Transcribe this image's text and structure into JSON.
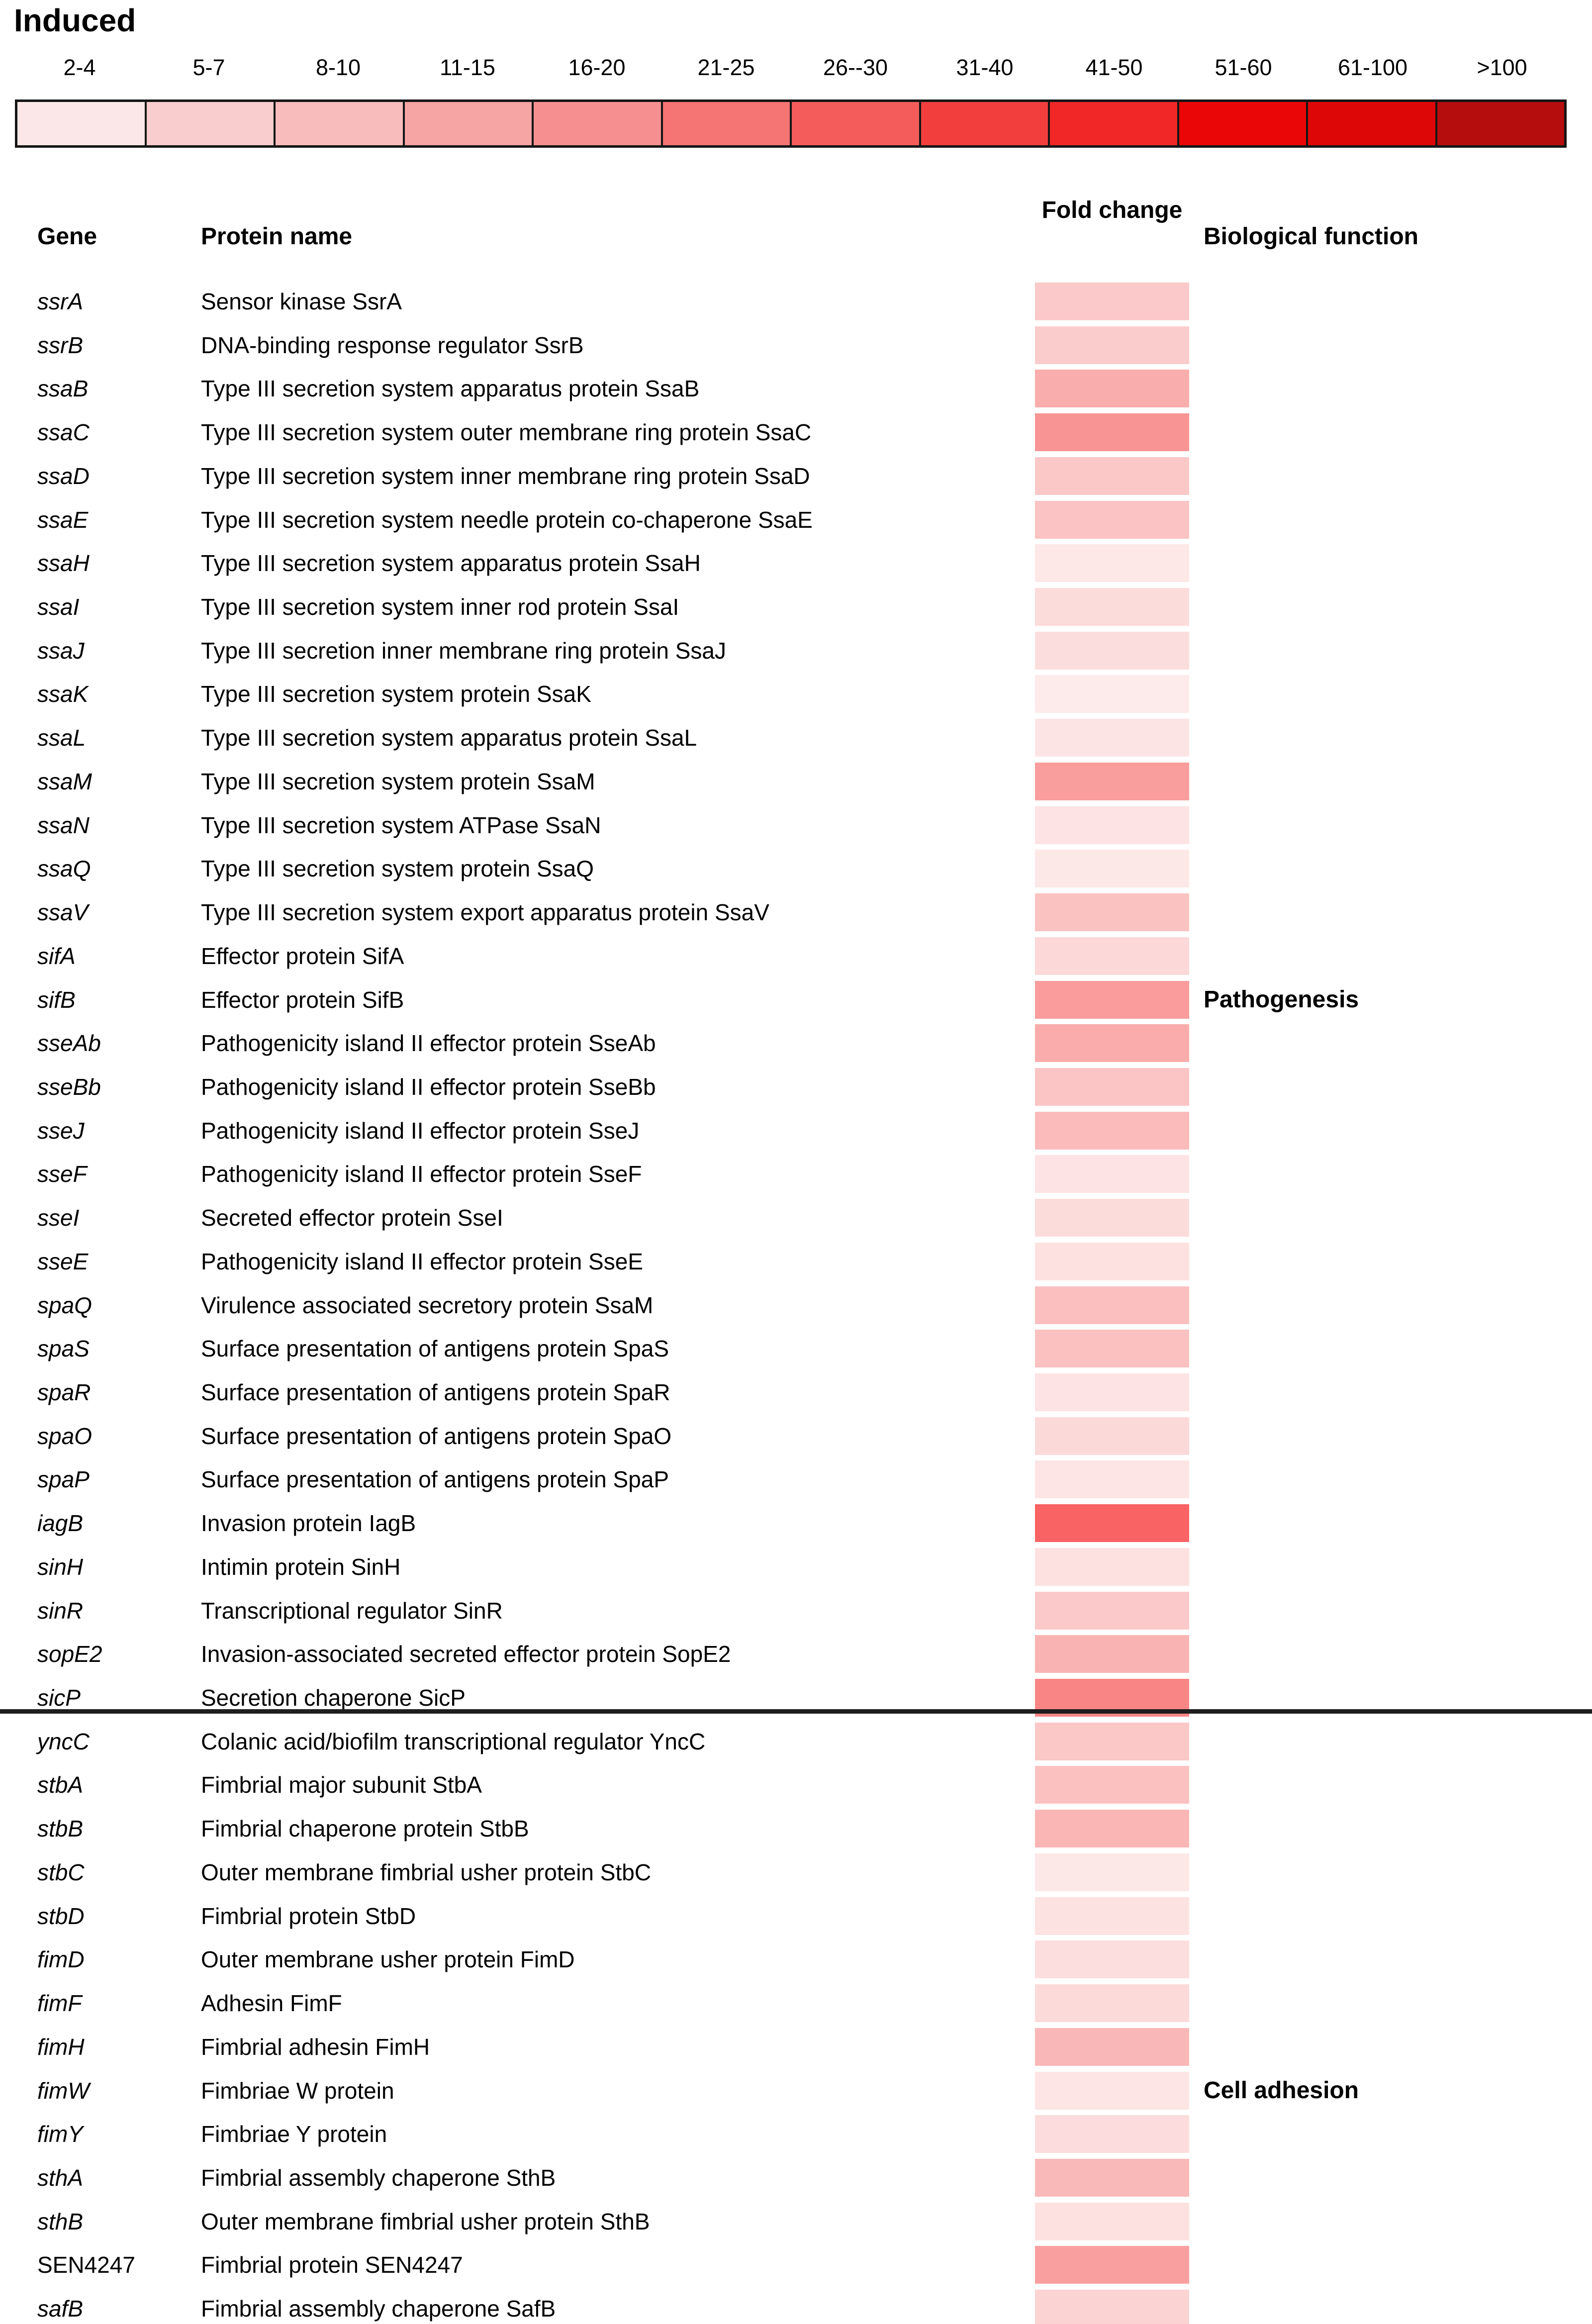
{
  "title": "Induced",
  "chart_data": {
    "type": "heatmap",
    "title": "Induced",
    "legend": {
      "bins": [
        {
          "label": "2-4",
          "color": "#fbe7e7"
        },
        {
          "label": "5-7",
          "color": "#f9cdcd"
        },
        {
          "label": "8-10",
          "color": "#f8bcbc"
        },
        {
          "label": "11-15",
          "color": "#f7a4a4"
        },
        {
          "label": "16-20",
          "color": "#f69090"
        },
        {
          "label": "21-25",
          "color": "#f57474"
        },
        {
          "label": "26--30",
          "color": "#f45c5c"
        },
        {
          "label": "31-40",
          "color": "#f33e3e"
        },
        {
          "label": "41-50",
          "color": "#f12727"
        },
        {
          "label": "51-60",
          "color": "#ea0606"
        },
        {
          "label": "61-100",
          "color": "#de0707"
        },
        {
          "label": ">100",
          "color": "#b50d0d"
        }
      ]
    },
    "table": {
      "headers": {
        "gene": "Gene",
        "protein": "Protein name",
        "fold_change": "Fold change",
        "biological_function": "Biological function"
      },
      "groups": [
        {
          "function": "Pathogenesis",
          "function_row": 16,
          "rows": [
            {
              "gene": "ssrA",
              "protein": "Sensor kinase SsrA",
              "fold_color": "#fbc9c9",
              "fold_bin": "8-10"
            },
            {
              "gene": "ssrB",
              "protein": "DNA-binding response regulator SsrB",
              "fold_color": "#fbcccc",
              "fold_bin": "8-10"
            },
            {
              "gene": "ssaB",
              "protein": "Type III secretion system apparatus protein SsaB",
              "fold_color": "#faadad",
              "fold_bin": "11-15"
            },
            {
              "gene": "ssaC",
              "protein": "Type III secretion system outer membrane ring protein SsaC",
              "fold_color": "#f99494",
              "fold_bin": "16-20"
            },
            {
              "gene": "ssaD",
              "protein": "Type III secretion system inner membrane ring protein SsaD",
              "fold_color": "#fbc7c7",
              "fold_bin": "8-10"
            },
            {
              "gene": "ssaE",
              "protein": "Type III secretion system needle protein co-chaperone SsaE",
              "fold_color": "#fbc3c3",
              "fold_bin": "8-10"
            },
            {
              "gene": "ssaH",
              "protein": "Type III secretion system apparatus protein SsaH",
              "fold_color": "#fde7e7",
              "fold_bin": "2-4"
            },
            {
              "gene": "ssaI",
              "protein": "Type III secretion system inner rod protein SsaI",
              "fold_color": "#fcdbdb",
              "fold_bin": "5-7"
            },
            {
              "gene": "ssaJ",
              "protein": "Type III secretion inner membrane ring protein SsaJ",
              "fold_color": "#fcdddd",
              "fold_bin": "5-7"
            },
            {
              "gene": "ssaK",
              "protein": "Type III secretion system protein SsaK",
              "fold_color": "#fdeaea",
              "fold_bin": "2-4"
            },
            {
              "gene": "ssaL",
              "protein": "Type III secretion system apparatus protein SsaL",
              "fold_color": "#fde4e4",
              "fold_bin": "2-4"
            },
            {
              "gene": "ssaM",
              "protein": "Type III secretion system protein SsaM",
              "fold_color": "#fa9d9d",
              "fold_bin": "16-20"
            },
            {
              "gene": "ssaN",
              "protein": "Type III secretion system ATPase SsaN",
              "fold_color": "#fde3e3",
              "fold_bin": "2-4"
            },
            {
              "gene": "ssaQ",
              "protein": "Type III secretion system protein SsaQ",
              "fold_color": "#fde8e8",
              "fold_bin": "2-4"
            },
            {
              "gene": "ssaV",
              "protein": "Type III secretion system export apparatus protein SsaV",
              "fold_color": "#fbc2c2",
              "fold_bin": "8-10"
            },
            {
              "gene": "sifA",
              "protein": "Effector protein SifA",
              "fold_color": "#fcd8d8",
              "fold_bin": "5-7"
            },
            {
              "gene": "sifB",
              "protein": "Effector protein SifB",
              "fold_color": "#fa9c9c",
              "fold_bin": "16-20"
            },
            {
              "gene": "sseAb",
              "protein": "Pathogenicity island II effector protein SseAb",
              "fold_color": "#faacac",
              "fold_bin": "11-15"
            },
            {
              "gene": "sseBb",
              "protein": "Pathogenicity island II effector protein SseBb",
              "fold_color": "#fbc5c5",
              "fold_bin": "8-10"
            },
            {
              "gene": "sseJ",
              "protein": "Pathogenicity island II effector protein SseJ",
              "fold_color": "#fbbbbb",
              "fold_bin": "11-15"
            },
            {
              "gene": "sseF",
              "protein": "Pathogenicity island II effector protein SseF",
              "fold_color": "#fde3e3",
              "fold_bin": "2-4"
            },
            {
              "gene": "sseI",
              "protein": "Secreted effector protein SseI",
              "fold_color": "#fcdbdb",
              "fold_bin": "5-7"
            },
            {
              "gene": "sseE",
              "protein": "Pathogenicity island II effector protein SseE",
              "fold_color": "#fde1e1",
              "fold_bin": "2-4"
            },
            {
              "gene": "spaQ",
              "protein": "Virulence associated secretory protein SsaM",
              "fold_color": "#fbbfbf",
              "fold_bin": "11-15"
            },
            {
              "gene": "spaS",
              "protein": "Surface presentation of antigens protein SpaS",
              "fold_color": "#fbc1c1",
              "fold_bin": "8-10"
            },
            {
              "gene": "spaR",
              "protein": "Surface presentation of antigens protein SpaR",
              "fold_color": "#fde3e3",
              "fold_bin": "2-4"
            },
            {
              "gene": "spaO",
              "protein": "Surface presentation of antigens protein SpaO",
              "fold_color": "#fcd9d9",
              "fold_bin": "5-7"
            },
            {
              "gene": "spaP",
              "protein": "Surface presentation of antigens protein SpaP",
              "fold_color": "#fde5e5",
              "fold_bin": "2-4"
            },
            {
              "gene": "iagB",
              "protein": "Invasion protein IagB",
              "fold_color": "#f96363",
              "fold_bin": "26--30"
            },
            {
              "gene": "sinH",
              "protein": "Intimin protein SinH",
              "fold_color": "#fde1e1",
              "fold_bin": "2-4"
            },
            {
              "gene": "sinR",
              "protein": "Transcriptional regulator SinR",
              "fold_color": "#fbc9c9",
              "fold_bin": "8-10"
            },
            {
              "gene": "sopE2",
              "protein": "Invasion-associated secreted effector protein SopE2",
              "fold_color": "#fab3b3",
              "fold_bin": "11-15"
            },
            {
              "gene": "sicP",
              "protein": "Secretion chaperone SicP",
              "fold_color": "#fa8585",
              "fold_bin": "21-25"
            }
          ]
        },
        {
          "function": "Cell adhesion",
          "function_row": 8,
          "rows": [
            {
              "gene": "yncC",
              "protein": "Colanic acid/biofilm transcriptional regulator YncC",
              "fold_color": "#fbc7c7",
              "fold_bin": "8-10"
            },
            {
              "gene": "stbA",
              "protein": "Fimbrial major subunit StbA",
              "fold_color": "#fbc1c1",
              "fold_bin": "8-10"
            },
            {
              "gene": "stbB",
              "protein": "Fimbrial chaperone protein StbB",
              "fold_color": "#fab5b5",
              "fold_bin": "11-15"
            },
            {
              "gene": "stbC",
              "protein": "Outer membrane fimbrial usher protein StbC",
              "fold_color": "#fde8e8",
              "fold_bin": "2-4"
            },
            {
              "gene": "stbD",
              "protein": "Fimbrial protein StbD",
              "fold_color": "#fde2e2",
              "fold_bin": "2-4"
            },
            {
              "gene": "fimD",
              "protein": "Outer membrane usher protein FimD",
              "fold_color": "#fcdede",
              "fold_bin": "5-7"
            },
            {
              "gene": "fimF",
              "protein": "Adhesin FimF",
              "fold_color": "#fcdada",
              "fold_bin": "5-7"
            },
            {
              "gene": "fimH",
              "protein": "Fimbrial adhesin FimH",
              "fold_color": "#fab7b7",
              "fold_bin": "11-15"
            },
            {
              "gene": "fimW",
              "protein": "Fimbriae W protein",
              "fold_color": "#fde5e5",
              "fold_bin": "2-4"
            },
            {
              "gene": "fimY",
              "protein": "Fimbriae Y protein",
              "fold_color": "#fcdcdc",
              "fold_bin": "5-7"
            },
            {
              "gene": "sthA",
              "protein": "Fimbrial assembly chaperone SthB",
              "fold_color": "#fab9b9",
              "fold_bin": "11-15"
            },
            {
              "gene": "sthB",
              "protein": "Outer membrane fimbrial usher protein SthB",
              "fold_color": "#fde1e1",
              "fold_bin": "2-4"
            },
            {
              "gene": "SEN4247",
              "protein": "Fimbrial protein SEN4247",
              "italic": false,
              "fold_color": "#fa9f9f",
              "fold_bin": "16-20"
            },
            {
              "gene": "safB",
              "protein": "Fimbrial assembly chaperone SafB",
              "fold_color": "#fcd3d3",
              "fold_bin": "5-7"
            }
          ]
        }
      ]
    }
  }
}
